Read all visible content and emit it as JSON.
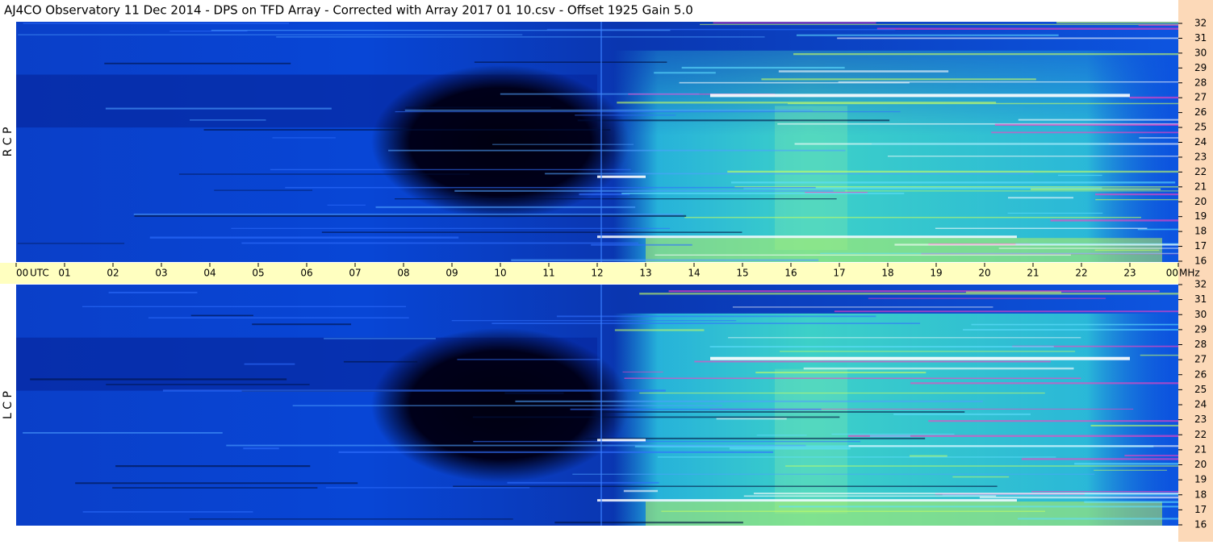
{
  "chart_data": {
    "type": "spectrogram",
    "title": "AJ4CO Observatory  11 Dec 2014  -  DPS on TFD Array  -  Corrected with Array 2017 01 10.csv  -  Offset 1925  Gain 5.0",
    "x_label": "UTC",
    "y_label": "MHz",
    "panels": [
      {
        "label": "R C P"
      },
      {
        "label": "L C P"
      }
    ],
    "xlim": [
      0,
      24
    ],
    "xticks": [
      {
        "value": 0,
        "label": "00"
      },
      {
        "value": 1,
        "label": "01"
      },
      {
        "value": 2,
        "label": "02"
      },
      {
        "value": 3,
        "label": "03"
      },
      {
        "value": 4,
        "label": "04"
      },
      {
        "value": 5,
        "label": "05"
      },
      {
        "value": 6,
        "label": "06"
      },
      {
        "value": 7,
        "label": "07"
      },
      {
        "value": 8,
        "label": "08"
      },
      {
        "value": 9,
        "label": "09"
      },
      10,
      11,
      12,
      13,
      14,
      15,
      16,
      17,
      18,
      19,
      20,
      21,
      22,
      23,
      {
        "value": 24,
        "label": "00"
      }
    ],
    "ylim": [
      16,
      32
    ],
    "yticks": [
      16,
      17,
      18,
      19,
      20,
      21,
      22,
      23,
      24,
      25,
      26,
      27,
      28,
      29,
      30,
      31,
      32
    ]
  }
}
